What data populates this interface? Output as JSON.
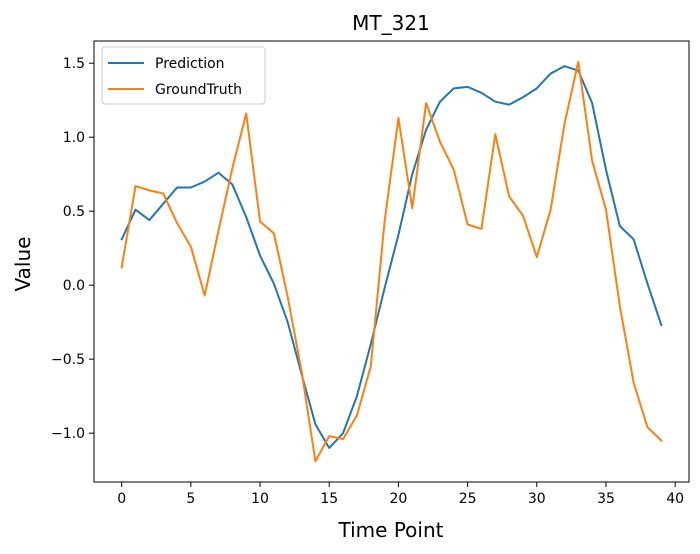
{
  "chart_data": {
    "type": "line",
    "title": "MT_321",
    "xlabel": "Time Point",
    "ylabel": "Value",
    "xlim": [
      -2,
      41
    ],
    "ylim": [
      -1.33,
      1.65
    ],
    "xticks": [
      0,
      5,
      10,
      15,
      20,
      25,
      30,
      35,
      40
    ],
    "yticks": [
      -1.0,
      -0.5,
      0.0,
      0.5,
      1.0,
      1.5
    ],
    "ytick_labels": [
      "−1.0",
      "−0.5",
      "0.0",
      "0.5",
      "1.0",
      "1.5"
    ],
    "legend_position": "top-left",
    "grid": false,
    "x": [
      0,
      1,
      2,
      3,
      4,
      5,
      6,
      7,
      8,
      9,
      10,
      11,
      12,
      13,
      14,
      15,
      16,
      17,
      18,
      19,
      20,
      21,
      22,
      23,
      24,
      25,
      26,
      27,
      28,
      29,
      30,
      31,
      32,
      33,
      34,
      35,
      36,
      37,
      38,
      39
    ],
    "series": [
      {
        "name": "Prediction",
        "color": "#1f77b4",
        "values": [
          0.31,
          0.51,
          0.44,
          0.55,
          0.66,
          0.66,
          0.7,
          0.76,
          0.68,
          0.46,
          0.2,
          0.01,
          -0.25,
          -0.6,
          -0.94,
          -1.1,
          -1.0,
          -0.75,
          -0.4,
          -0.02,
          0.34,
          0.75,
          1.05,
          1.24,
          1.33,
          1.34,
          1.3,
          1.24,
          1.22,
          1.27,
          1.33,
          1.43,
          1.48,
          1.45,
          1.23,
          0.78,
          0.4,
          0.31,
          0.01,
          -0.27
        ]
      },
      {
        "name": "GroundTruth",
        "color": "#ff7f0e",
        "values": [
          0.12,
          0.67,
          0.64,
          0.62,
          0.42,
          0.26,
          -0.07,
          0.37,
          0.79,
          1.16,
          0.43,
          0.35,
          -0.08,
          -0.58,
          -1.19,
          -1.02,
          -1.04,
          -0.88,
          -0.55,
          0.43,
          1.13,
          0.52,
          1.23,
          0.97,
          0.78,
          0.41,
          0.38,
          1.02,
          0.6,
          0.47,
          0.19,
          0.51,
          1.09,
          1.51,
          0.84,
          0.51,
          -0.14,
          -0.66,
          -0.96,
          -1.05
        ]
      }
    ]
  }
}
